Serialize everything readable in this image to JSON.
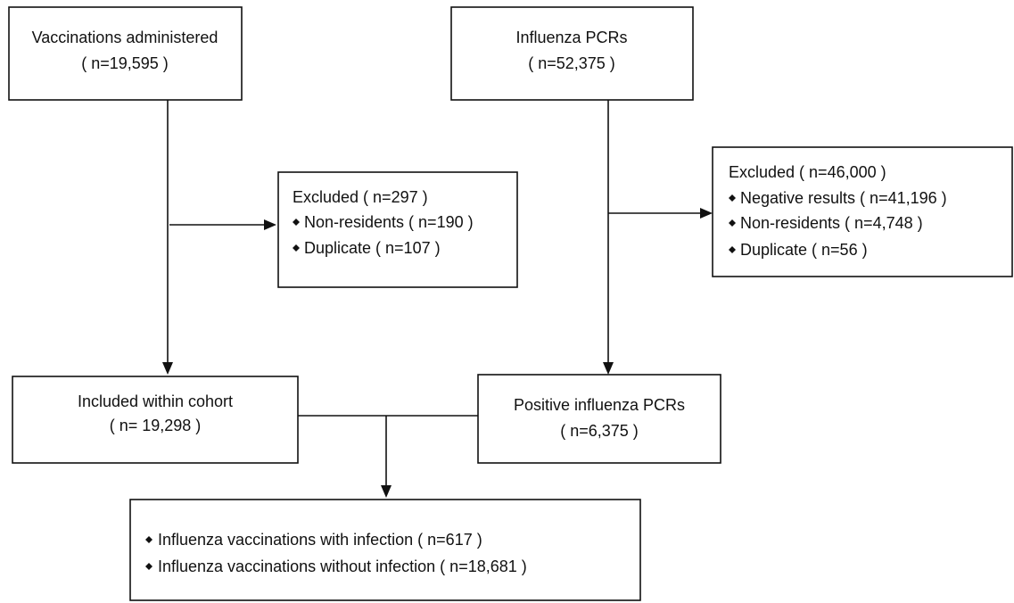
{
  "nodes": [
    {
      "lines": [
        "Vaccinations administered",
        "( n=19,595 )"
      ]
    },
    {
      "lines": [
        "Influenza PCRs",
        "( n=52,375 )"
      ]
    },
    {
      "lines": [
        "Excluded ( n=297 )",
        "Non-residents ( n=190 )",
        "Duplicate ( n=107 )"
      ]
    },
    {
      "lines": [
        "Excluded  ( n=46,000 )",
        "Negative results ( n=41,196 )",
        "Non-residents ( n=4,748 )",
        "Duplicate ( n=56 )"
      ]
    },
    {
      "lines": [
        "Included within cohort",
        "( n= 19,298 )"
      ]
    },
    {
      "lines": [
        "Positive influenza PCRs",
        "( n=6,375 )"
      ]
    },
    {
      "lines": [
        "Influenza vaccinations with infection ( n=617 )",
        "Influenza vaccinations without infection ( n=18,681 )"
      ]
    }
  ]
}
